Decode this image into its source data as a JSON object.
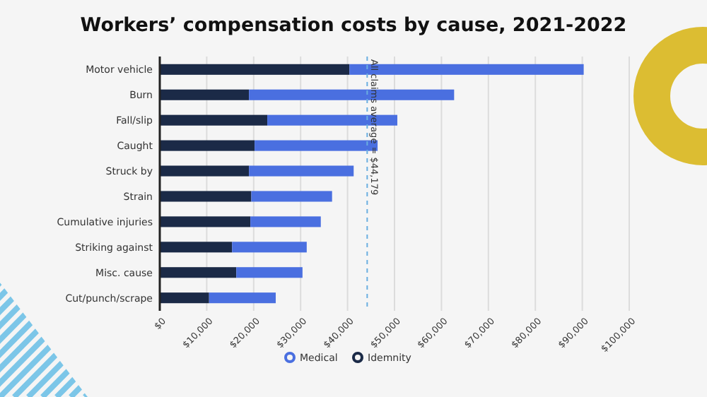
{
  "chart_data": {
    "type": "bar",
    "title": "Workers’ compensation costs by cause, 2021-2022",
    "orientation": "horizontal",
    "stacked": true,
    "categories": [
      "Motor vehicle",
      "Burn",
      "Fall/slip",
      "Caught",
      "Struck by",
      "Strain",
      "Cumulative injuries",
      "Striking against",
      "Misc. cause",
      "Cut/punch/scrape"
    ],
    "series": [
      {
        "name": "Idemnity",
        "color": "#1b2a47",
        "values": [
          40400,
          19000,
          22900,
          20200,
          19000,
          19500,
          19300,
          15400,
          16300,
          10500
        ]
      },
      {
        "name": "Medical",
        "color": "#4a6fe0",
        "values": [
          49900,
          43700,
          27700,
          26200,
          22300,
          17200,
          15000,
          15900,
          14100,
          14200
        ]
      }
    ],
    "xlim": [
      0,
      100000
    ],
    "xticks": [
      {
        "value": 0,
        "label": "$0"
      },
      {
        "value": 10000,
        "label": "$10,000"
      },
      {
        "value": 20000,
        "label": "$20,000"
      },
      {
        "value": 30000,
        "label": "$30,000"
      },
      {
        "value": 40000,
        "label": "$40,000"
      },
      {
        "value": 50000,
        "label": "$50,000"
      },
      {
        "value": 60000,
        "label": "$60,000"
      },
      {
        "value": 70000,
        "label": "$70,000"
      },
      {
        "value": 80000,
        "label": "$80,000"
      },
      {
        "value": 90000,
        "label": "$90,000"
      },
      {
        "value": 100000,
        "label": "$100,000"
      }
    ],
    "grid": "x",
    "legend": "bottom",
    "ref_lines": [
      {
        "axis": "x",
        "value": 44179,
        "label": "All claims average = $44,179",
        "color": "#6aaee0",
        "line_style": "dashed"
      }
    ]
  }
}
